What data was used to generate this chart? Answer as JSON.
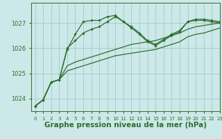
{
  "bg_color": "#cce8e8",
  "grid_color": "#a8cece",
  "line_color": "#2d6e2d",
  "xlabel": "Graphe pression niveau de la mer (hPa)",
  "xlabel_fontsize": 7.5,
  "ylim": [
    1023.5,
    1027.8
  ],
  "xlim": [
    -0.5,
    23
  ],
  "yticks": [
    1024,
    1025,
    1026,
    1027
  ],
  "xticks": [
    0,
    1,
    2,
    3,
    4,
    5,
    6,
    7,
    8,
    9,
    10,
    11,
    12,
    13,
    14,
    15,
    16,
    17,
    18,
    19,
    20,
    21,
    22,
    23
  ],
  "series": [
    [
      1023.7,
      1023.95,
      1024.65,
      1024.75,
      1025.95,
      1026.55,
      1027.05,
      1027.1,
      1027.1,
      1027.25,
      1027.3,
      1027.05,
      1026.85,
      1026.6,
      1026.3,
      1026.15,
      1026.35,
      1026.55,
      1026.7,
      1027.05,
      1027.15,
      1027.15,
      1027.1,
      1027.05
    ],
    [
      1023.7,
      1023.95,
      1024.65,
      1024.75,
      1026.0,
      1026.3,
      1026.6,
      1026.75,
      1026.85,
      1027.05,
      1027.25,
      1027.05,
      1026.8,
      1026.55,
      1026.25,
      1026.1,
      1026.3,
      1026.5,
      1026.65,
      1027.05,
      1027.1,
      1027.1,
      1027.05,
      1027.0
    ],
    [
      1023.7,
      1023.95,
      1024.65,
      1024.75,
      1025.3,
      1025.45,
      1025.55,
      1025.65,
      1025.75,
      1025.85,
      1025.95,
      1026.05,
      1026.15,
      1026.2,
      1026.25,
      1026.3,
      1026.4,
      1026.5,
      1026.6,
      1026.75,
      1026.85,
      1026.9,
      1026.95,
      1027.0
    ],
    [
      1023.7,
      1023.95,
      1024.65,
      1024.75,
      1025.1,
      1025.2,
      1025.3,
      1025.4,
      1025.5,
      1025.6,
      1025.7,
      1025.75,
      1025.8,
      1025.85,
      1025.9,
      1025.95,
      1026.05,
      1026.15,
      1026.25,
      1026.45,
      1026.55,
      1026.6,
      1026.7,
      1026.8
    ]
  ]
}
